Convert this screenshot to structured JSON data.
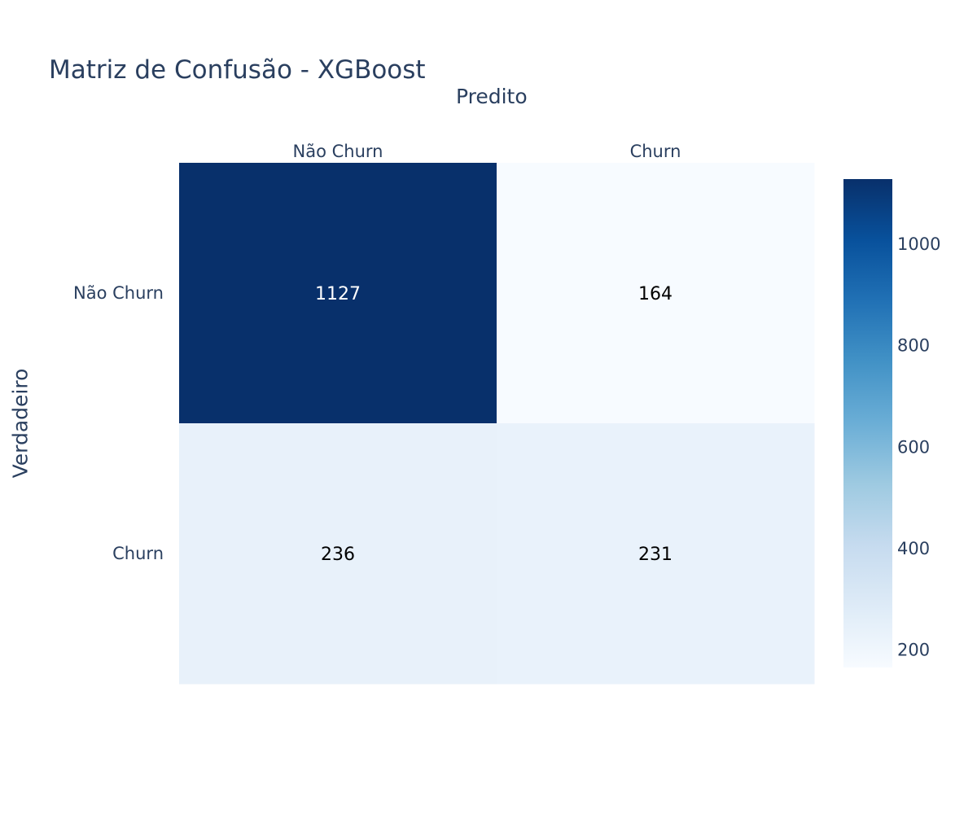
{
  "chart_data": {
    "type": "heatmap",
    "title": "Matriz de Confusão - XGBoost",
    "xlabel": "Predito",
    "ylabel": "Verdadeiro",
    "x_categories": [
      "Não Churn",
      "Churn"
    ],
    "y_categories": [
      "Não Churn",
      "Churn"
    ],
    "z": [
      [
        1127,
        164
      ],
      [
        236,
        231
      ]
    ],
    "cell_text": [
      [
        "1127",
        "164"
      ],
      [
        "236",
        "231"
      ]
    ],
    "colorscale": "Blues",
    "colorscale_stops": [
      "#f7fbff",
      "#deebf7",
      "#c6dbef",
      "#9ecae1",
      "#6baed6",
      "#4292c6",
      "#2171b5",
      "#08519c",
      "#08306b"
    ],
    "zmin": 164,
    "zmax": 1127,
    "colorbar_ticks": [
      200,
      400,
      600,
      800,
      1000
    ],
    "x_axis_side": "top",
    "grid": false,
    "text_color_dark": "#000000",
    "text_color_light": "#ffffff",
    "axis_text_color": "#2a3f5f"
  }
}
